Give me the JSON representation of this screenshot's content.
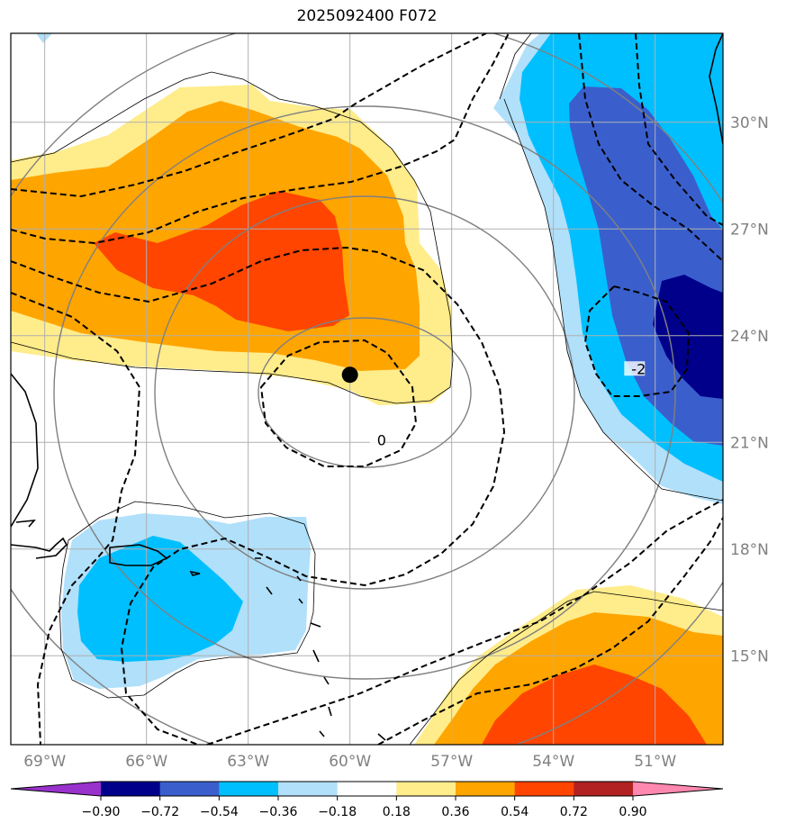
{
  "title": "2025092400 F072",
  "map": {
    "lon_range": [
      -70.0,
      -49.0
    ],
    "lat_range": [
      12.5,
      32.5
    ],
    "lat_ticks": [
      {
        "value": 30,
        "label": "30°N"
      },
      {
        "value": 27,
        "label": "27°N"
      },
      {
        "value": 24,
        "label": "24°N"
      },
      {
        "value": 21,
        "label": "21°N"
      },
      {
        "value": 18,
        "label": "18°N"
      },
      {
        "value": 15,
        "label": "15°N"
      }
    ],
    "lon_ticks": [
      {
        "value": -69,
        "label": "69°W"
      },
      {
        "value": -66,
        "label": "66°W"
      },
      {
        "value": -63,
        "label": "63°W"
      },
      {
        "value": -60,
        "label": "60°W"
      },
      {
        "value": -57,
        "label": "57°W"
      },
      {
        "value": -54,
        "label": "54°W"
      },
      {
        "value": -51,
        "label": "51°W"
      }
    ],
    "grid": true,
    "center_marker": {
      "lon": -60.0,
      "lat": 22.9
    },
    "contour_labels": [
      {
        "text": "0",
        "lon": -59.2,
        "lat": 21.0
      },
      {
        "text": "-2",
        "lon": -51.7,
        "lat": 23.0
      }
    ]
  },
  "colorbar": {
    "levels": [
      "−0.90",
      "−0.72",
      "−0.54",
      "−0.36",
      "−0.18",
      "0.18",
      "0.36",
      "0.54",
      "0.72",
      "0.90"
    ],
    "colors": [
      "#9932cc",
      "#00008b",
      "#3a5fcd",
      "#00bfff",
      "#b0e0fa",
      "#ffffff",
      "#ffec8b",
      "#ffa500",
      "#ff4500",
      "#b22222",
      "#ff88b0"
    ]
  }
}
